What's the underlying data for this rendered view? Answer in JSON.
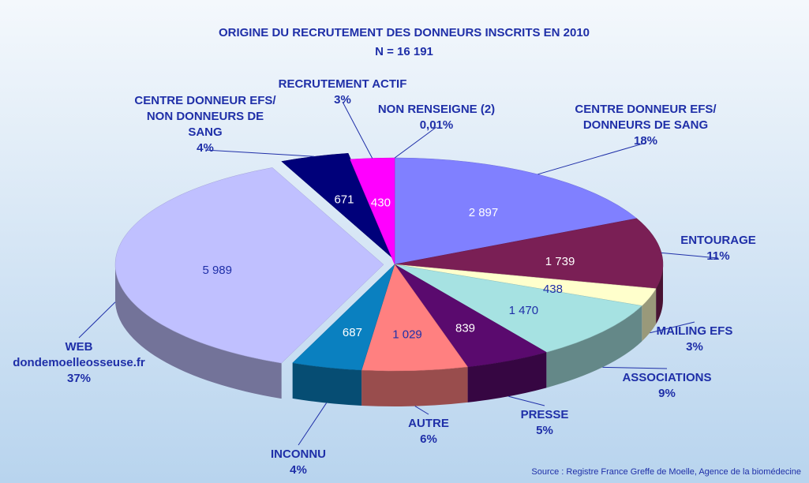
{
  "chart_data": {
    "type": "pie3d",
    "title": "ORIGINE DU RECRUTEMENT DES DONNEURS INSCRITS EN 2010",
    "subtitle": "N = 16 191",
    "source": "Source : Registre France Greffe de Moelle, Agence de la biomédecine",
    "categories": [
      [
        "NON RENSEIGNE (2)"
      ],
      [
        "CENTRE DONNEUR EFS/",
        "DONNEURS DE SANG"
      ],
      [
        "ENTOURAGE"
      ],
      [
        "MAILING EFS"
      ],
      [
        "ASSOCIATIONS"
      ],
      [
        "PRESSE"
      ],
      [
        "AUTRE"
      ],
      [
        "INCONNU"
      ],
      [
        "WEB",
        "dondemoelleosseuse.fr"
      ],
      [
        "CENTRE DONNEUR EFS/",
        "NON DONNEURS DE",
        "SANG"
      ],
      [
        "RECRUTEMENT ACTIF"
      ]
    ],
    "percent_labels": [
      "0,01%",
      "18%",
      "11%",
      "3%",
      "9%",
      "5%",
      "6%",
      "4%",
      "37%",
      "4%",
      "3%"
    ],
    "values": [
      2,
      2897,
      1739,
      438,
      1470,
      839,
      1029,
      687,
      5989,
      671,
      430
    ],
    "value_labels": [
      null,
      "2 897",
      "1 739",
      "438",
      "1 470",
      "839",
      "1 029",
      "687",
      "5 989",
      "671",
      "430"
    ],
    "colors": [
      "#dcdcf0",
      "#8080ff",
      "#7a1f55",
      "#ffffcc",
      "#a6e2e2",
      "#5a0a6e",
      "#ff8080",
      "#0a80c0",
      "#c0c0ff",
      "#00007a",
      "#ff00ff"
    ]
  }
}
